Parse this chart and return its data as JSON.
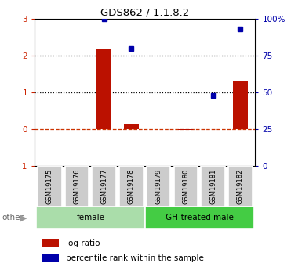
{
  "title": "GDS862 / 1.1.8.2",
  "samples": [
    "GSM19175",
    "GSM19176",
    "GSM19177",
    "GSM19178",
    "GSM19179",
    "GSM19180",
    "GSM19181",
    "GSM19182"
  ],
  "log_ratio": [
    0.0,
    0.0,
    2.18,
    0.13,
    0.0,
    -0.02,
    0.0,
    1.3
  ],
  "percentile_rank": [
    null,
    null,
    100.0,
    80.0,
    null,
    null,
    48.0,
    93.0
  ],
  "groups": [
    {
      "label": "female",
      "indices": [
        0,
        1,
        2,
        3
      ],
      "color": "#aaddaa"
    },
    {
      "label": "GH-treated male",
      "indices": [
        4,
        5,
        6,
        7
      ],
      "color": "#44cc44"
    }
  ],
  "ylim_left": [
    -1,
    3
  ],
  "ylim_right": [
    0,
    100
  ],
  "yticks_left": [
    -1,
    0,
    1,
    2,
    3
  ],
  "yticks_right": [
    0,
    25,
    50,
    75,
    100
  ],
  "ytick_labels_right": [
    "0",
    "25",
    "50",
    "75",
    "100%"
  ],
  "bar_color": "#bb1100",
  "dot_color": "#0000aa",
  "sample_box_color": "#cccccc",
  "legend_log": "log ratio",
  "legend_pct": "percentile rank within the sample"
}
